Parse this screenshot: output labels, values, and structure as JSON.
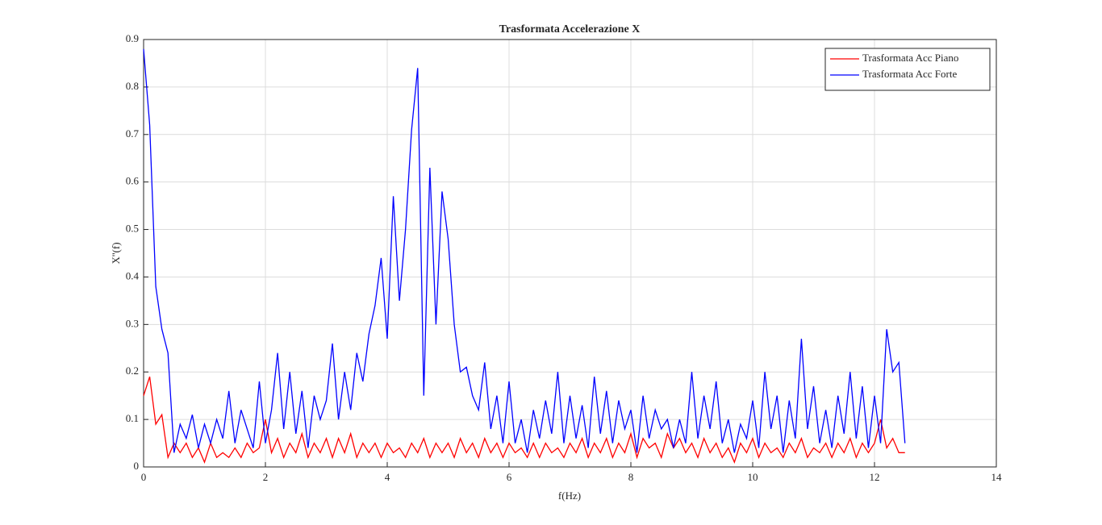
{
  "chart_data": {
    "type": "line",
    "title": "Trasformata Accelerazione X",
    "xlabel": "f(Hz)",
    "ylabel": "X''(f)",
    "x": [
      0,
      0.1,
      0.2,
      0.3,
      0.4,
      0.5,
      0.6,
      0.7,
      0.8,
      0.9,
      1,
      1.1,
      1.2,
      1.3,
      1.4,
      1.5,
      1.6,
      1.7,
      1.8,
      1.9,
      2,
      2.1,
      2.2,
      2.3,
      2.4,
      2.5,
      2.6,
      2.7,
      2.8,
      2.9,
      3,
      3.1,
      3.2,
      3.3,
      3.4,
      3.5,
      3.6,
      3.7,
      3.8,
      3.9,
      4,
      4.1,
      4.2,
      4.3,
      4.4,
      4.5,
      4.6,
      4.7,
      4.8,
      4.9,
      5,
      5.1,
      5.2,
      5.3,
      5.4,
      5.5,
      5.6,
      5.7,
      5.8,
      5.9,
      6,
      6.1,
      6.2,
      6.3,
      6.4,
      6.5,
      6.6,
      6.7,
      6.8,
      6.9,
      7,
      7.1,
      7.2,
      7.3,
      7.4,
      7.5,
      7.6,
      7.7,
      7.8,
      7.9,
      8,
      8.1,
      8.2,
      8.3,
      8.4,
      8.5,
      8.6,
      8.7,
      8.8,
      8.9,
      9,
      9.1,
      9.2,
      9.3,
      9.4,
      9.5,
      9.6,
      9.7,
      9.8,
      9.9,
      10,
      10.1,
      10.2,
      10.3,
      10.4,
      10.5,
      10.6,
      10.7,
      10.8,
      10.9,
      11,
      11.1,
      11.2,
      11.3,
      11.4,
      11.5,
      11.6,
      11.7,
      11.8,
      11.9,
      12,
      12.1,
      12.2,
      12.3,
      12.4,
      12.5
    ],
    "series": [
      {
        "name": "Trasformata Acc Piano",
        "color": "#ff0000",
        "values": [
          0.15,
          0.19,
          0.09,
          0.11,
          0.02,
          0.05,
          0.03,
          0.05,
          0.02,
          0.04,
          0.01,
          0.05,
          0.02,
          0.03,
          0.02,
          0.04,
          0.02,
          0.05,
          0.03,
          0.04,
          0.1,
          0.03,
          0.06,
          0.02,
          0.05,
          0.03,
          0.07,
          0.02,
          0.05,
          0.03,
          0.06,
          0.02,
          0.06,
          0.03,
          0.07,
          0.02,
          0.05,
          0.03,
          0.05,
          0.02,
          0.05,
          0.03,
          0.04,
          0.02,
          0.05,
          0.03,
          0.06,
          0.02,
          0.05,
          0.03,
          0.05,
          0.02,
          0.06,
          0.03,
          0.05,
          0.02,
          0.06,
          0.03,
          0.05,
          0.02,
          0.05,
          0.03,
          0.04,
          0.02,
          0.05,
          0.02,
          0.05,
          0.03,
          0.04,
          0.02,
          0.05,
          0.03,
          0.06,
          0.02,
          0.05,
          0.03,
          0.06,
          0.02,
          0.05,
          0.03,
          0.07,
          0.02,
          0.06,
          0.04,
          0.05,
          0.02,
          0.07,
          0.04,
          0.06,
          0.03,
          0.05,
          0.02,
          0.06,
          0.03,
          0.05,
          0.02,
          0.04,
          0.01,
          0.05,
          0.03,
          0.06,
          0.02,
          0.05,
          0.03,
          0.04,
          0.02,
          0.05,
          0.03,
          0.06,
          0.02,
          0.04,
          0.03,
          0.05,
          0.02,
          0.05,
          0.03,
          0.06,
          0.02,
          0.05,
          0.03,
          0.05,
          0.1,
          0.04,
          0.06,
          0.03,
          0.03
        ]
      },
      {
        "name": "Trasformata Acc Forte",
        "color": "#0000ff",
        "values": [
          0.88,
          0.72,
          0.38,
          0.29,
          0.24,
          0.03,
          0.09,
          0.06,
          0.11,
          0.04,
          0.09,
          0.05,
          0.1,
          0.06,
          0.16,
          0.05,
          0.12,
          0.08,
          0.04,
          0.18,
          0.05,
          0.12,
          0.24,
          0.08,
          0.2,
          0.07,
          0.16,
          0.04,
          0.15,
          0.1,
          0.14,
          0.26,
          0.1,
          0.2,
          0.12,
          0.24,
          0.18,
          0.28,
          0.34,
          0.44,
          0.27,
          0.57,
          0.35,
          0.5,
          0.71,
          0.84,
          0.15,
          0.63,
          0.3,
          0.58,
          0.48,
          0.3,
          0.2,
          0.21,
          0.15,
          0.12,
          0.22,
          0.08,
          0.15,
          0.05,
          0.18,
          0.05,
          0.1,
          0.03,
          0.12,
          0.06,
          0.14,
          0.07,
          0.2,
          0.05,
          0.15,
          0.06,
          0.13,
          0.04,
          0.19,
          0.07,
          0.16,
          0.05,
          0.14,
          0.08,
          0.12,
          0.03,
          0.15,
          0.06,
          0.12,
          0.08,
          0.1,
          0.04,
          0.1,
          0.05,
          0.2,
          0.06,
          0.15,
          0.08,
          0.18,
          0.05,
          0.1,
          0.03,
          0.09,
          0.06,
          0.14,
          0.04,
          0.2,
          0.08,
          0.15,
          0.03,
          0.14,
          0.06,
          0.27,
          0.08,
          0.17,
          0.05,
          0.12,
          0.04,
          0.15,
          0.07,
          0.2,
          0.06,
          0.17,
          0.04,
          0.15,
          0.05,
          0.29,
          0.2,
          0.22,
          0.05
        ]
      }
    ],
    "xlim": [
      0,
      14
    ],
    "xticks": [
      0,
      2,
      4,
      6,
      8,
      10,
      12,
      14
    ],
    "ylim": [
      0,
      0.9
    ],
    "yticks": [
      0,
      0.1,
      0.2,
      0.3,
      0.4,
      0.5,
      0.6,
      0.7,
      0.8,
      0.9
    ],
    "grid": true,
    "legend": "northeast"
  }
}
